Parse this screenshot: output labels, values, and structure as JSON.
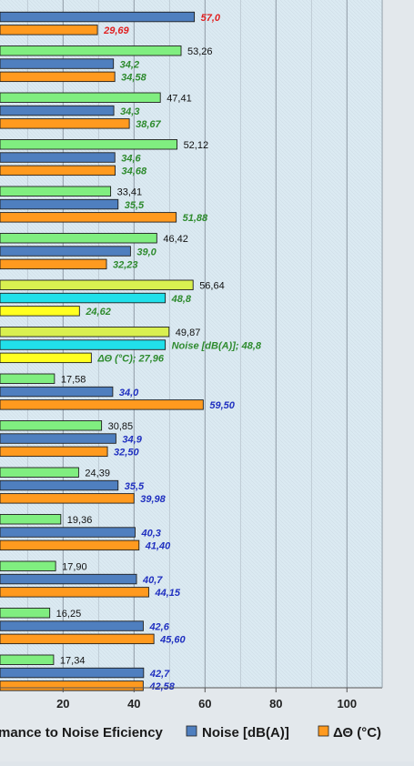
{
  "chart_data": {
    "type": "bar",
    "orientation": "horizontal",
    "xlim": [
      0,
      110
    ],
    "x_ticks": [
      "20",
      "40",
      "60",
      "80",
      "100"
    ],
    "grid": true,
    "legend_position": "bottom",
    "legend": [
      {
        "key": "eff",
        "label": "mance to Noise Eficiency",
        "color": "#7ef07e"
      },
      {
        "key": "noise",
        "label": "Noise [dB(A)]",
        "color": "#4f7fbf"
      },
      {
        "key": "temp",
        "label": "ΔΘ (°C)",
        "color": "#ff9a1f"
      }
    ],
    "groups": [
      {
        "eff": null,
        "eff_label": "",
        "noise": 57.0,
        "noise_label": "57,0",
        "noise_label_color": "#e02020",
        "temp": 29.69,
        "temp_label": "29,69",
        "temp_label_color": "#e02020"
      },
      {
        "eff": 53.26,
        "eff_label": "53,26",
        "noise": 34.2,
        "noise_label": "34,2",
        "noise_label_color": "#2e8b2e",
        "temp": 34.58,
        "temp_label": "34,58",
        "temp_label_color": "#2e8b2e"
      },
      {
        "eff": 47.41,
        "eff_label": "47,41",
        "noise": 34.3,
        "noise_label": "34,3",
        "noise_label_color": "#2e8b2e",
        "temp": 38.67,
        "temp_label": "38,67",
        "temp_label_color": "#2e8b2e"
      },
      {
        "eff": 52.12,
        "eff_label": "52,12",
        "noise": 34.6,
        "noise_label": "34,6",
        "noise_label_color": "#2e8b2e",
        "temp": 34.68,
        "temp_label": "34,68",
        "temp_label_color": "#2e8b2e"
      },
      {
        "eff": 33.41,
        "eff_label": "33,41",
        "noise": 35.5,
        "noise_label": "35,5",
        "noise_label_color": "#2e8b2e",
        "temp": 51.88,
        "temp_label": "51,88",
        "temp_label_color": "#2e8b2e"
      },
      {
        "eff": 46.42,
        "eff_label": "46,42",
        "noise": 39.0,
        "noise_label": "39,0",
        "noise_label_color": "#2e8b2e",
        "temp": 32.23,
        "temp_label": "32,23",
        "temp_label_color": "#2e8b2e"
      },
      {
        "eff": 56.64,
        "eff_label": "56,64",
        "noise": 48.8,
        "noise_label": "48,8",
        "noise_label_color": "#2e8b2e",
        "temp": 24.62,
        "temp_label": "24,62",
        "temp_label_color": "#2e8b2e",
        "highlight": true
      },
      {
        "eff": 49.87,
        "eff_label": "49,87",
        "noise": 48.8,
        "noise_label": "Noise [dB(A)]; 48,8",
        "noise_label_color": "#2e8b2e",
        "temp": 27.96,
        "temp_label": "ΔΘ (°C); 27,96",
        "temp_label_color": "#2e8b2e",
        "highlight": true
      },
      {
        "eff": 17.58,
        "eff_label": "17,58",
        "noise": 34.0,
        "noise_label": "34,0",
        "noise_label_color": "#2030c0",
        "temp": 59.5,
        "temp_label": "59,50",
        "temp_label_color": "#2030c0"
      },
      {
        "eff": 30.85,
        "eff_label": "30,85",
        "noise": 34.9,
        "noise_label": "34,9",
        "noise_label_color": "#2030c0",
        "temp": 32.5,
        "temp_label": "32,50",
        "temp_label_color": "#2030c0"
      },
      {
        "eff": 24.39,
        "eff_label": "24,39",
        "noise": 35.5,
        "noise_label": "35,5",
        "noise_label_color": "#2030c0",
        "temp": 39.98,
        "temp_label": "39,98",
        "temp_label_color": "#2030c0"
      },
      {
        "eff": 19.36,
        "eff_label": "19,36",
        "noise": 40.3,
        "noise_label": "40,3",
        "noise_label_color": "#2030c0",
        "temp": 41.4,
        "temp_label": "41,40",
        "temp_label_color": "#2030c0"
      },
      {
        "eff": 17.9,
        "eff_label": "17,90",
        "noise": 40.7,
        "noise_label": "40,7",
        "noise_label_color": "#2030c0",
        "temp": 44.15,
        "temp_label": "44,15",
        "temp_label_color": "#2030c0"
      },
      {
        "eff": 16.25,
        "eff_label": "16,25",
        "noise": 42.6,
        "noise_label": "42,6",
        "noise_label_color": "#2030c0",
        "temp": 45.6,
        "temp_label": "45,60",
        "temp_label_color": "#2030c0"
      },
      {
        "eff": 17.34,
        "eff_label": "17,34",
        "noise": 42.7,
        "noise_label": "42,7",
        "noise_label_color": "#2030c0",
        "temp": 42.58,
        "temp_label": "42,58",
        "temp_label_color": "#2030c0"
      }
    ]
  }
}
